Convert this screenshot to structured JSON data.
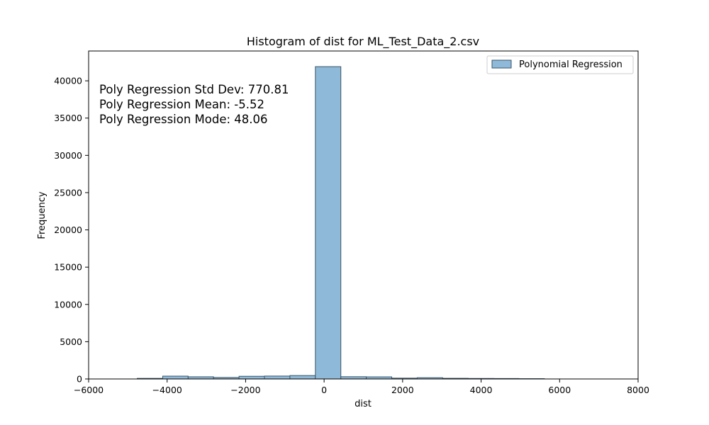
{
  "chart_data": {
    "type": "bar",
    "title": "Histogram of dist for ML_Test_Data_2.csv",
    "xlabel": "dist",
    "ylabel": "Frequency",
    "xlim": [
      -6000,
      8000
    ],
    "ylim": [
      0,
      44000
    ],
    "xticks": [
      -6000,
      -4000,
      -2000,
      0,
      2000,
      4000,
      6000,
      8000
    ],
    "xtick_labels": [
      "−6000",
      "−4000",
      "−2000",
      "0",
      "2000",
      "4000",
      "6000",
      "8000"
    ],
    "yticks": [
      0,
      5000,
      10000,
      15000,
      20000,
      25000,
      30000,
      35000,
      40000
    ],
    "ytick_labels": [
      "0",
      "5000",
      "10000",
      "15000",
      "20000",
      "25000",
      "30000",
      "35000",
      "40000"
    ],
    "bar_color": "#8fb9d9",
    "bar_edge_color": "#3a5566",
    "series": [
      {
        "name": "Polynomial Regression",
        "bins": [
          {
            "x0": -4762,
            "x1": -4113,
            "count": 80
          },
          {
            "x0": -4113,
            "x1": -3465,
            "count": 380
          },
          {
            "x0": -3465,
            "x1": -2817,
            "count": 290
          },
          {
            "x0": -2817,
            "x1": -2168,
            "count": 200
          },
          {
            "x0": -2168,
            "x1": -1520,
            "count": 360
          },
          {
            "x0": -1520,
            "x1": -871,
            "count": 390
          },
          {
            "x0": -871,
            "x1": -223,
            "count": 460
          },
          {
            "x0": -223,
            "x1": 426,
            "count": 41900
          },
          {
            "x0": 426,
            "x1": 1074,
            "count": 300
          },
          {
            "x0": 1074,
            "x1": 1723,
            "count": 280
          },
          {
            "x0": 1723,
            "x1": 2371,
            "count": 110
          },
          {
            "x0": 2371,
            "x1": 3020,
            "count": 170
          },
          {
            "x0": 3020,
            "x1": 3668,
            "count": 90
          },
          {
            "x0": 3668,
            "x1": 4316,
            "count": 70
          },
          {
            "x0": 4316,
            "x1": 4965,
            "count": 60
          },
          {
            "x0": 4965,
            "x1": 5613,
            "count": 40
          }
        ]
      }
    ],
    "legend": {
      "position": "top-right",
      "entries": [
        "Polynomial Regression"
      ]
    },
    "annotations": [
      "Poly Regression Std Dev: 770.81",
      "Poly Regression Mean: -5.52",
      "Poly Regression Mode: 48.06"
    ],
    "grid": false
  }
}
